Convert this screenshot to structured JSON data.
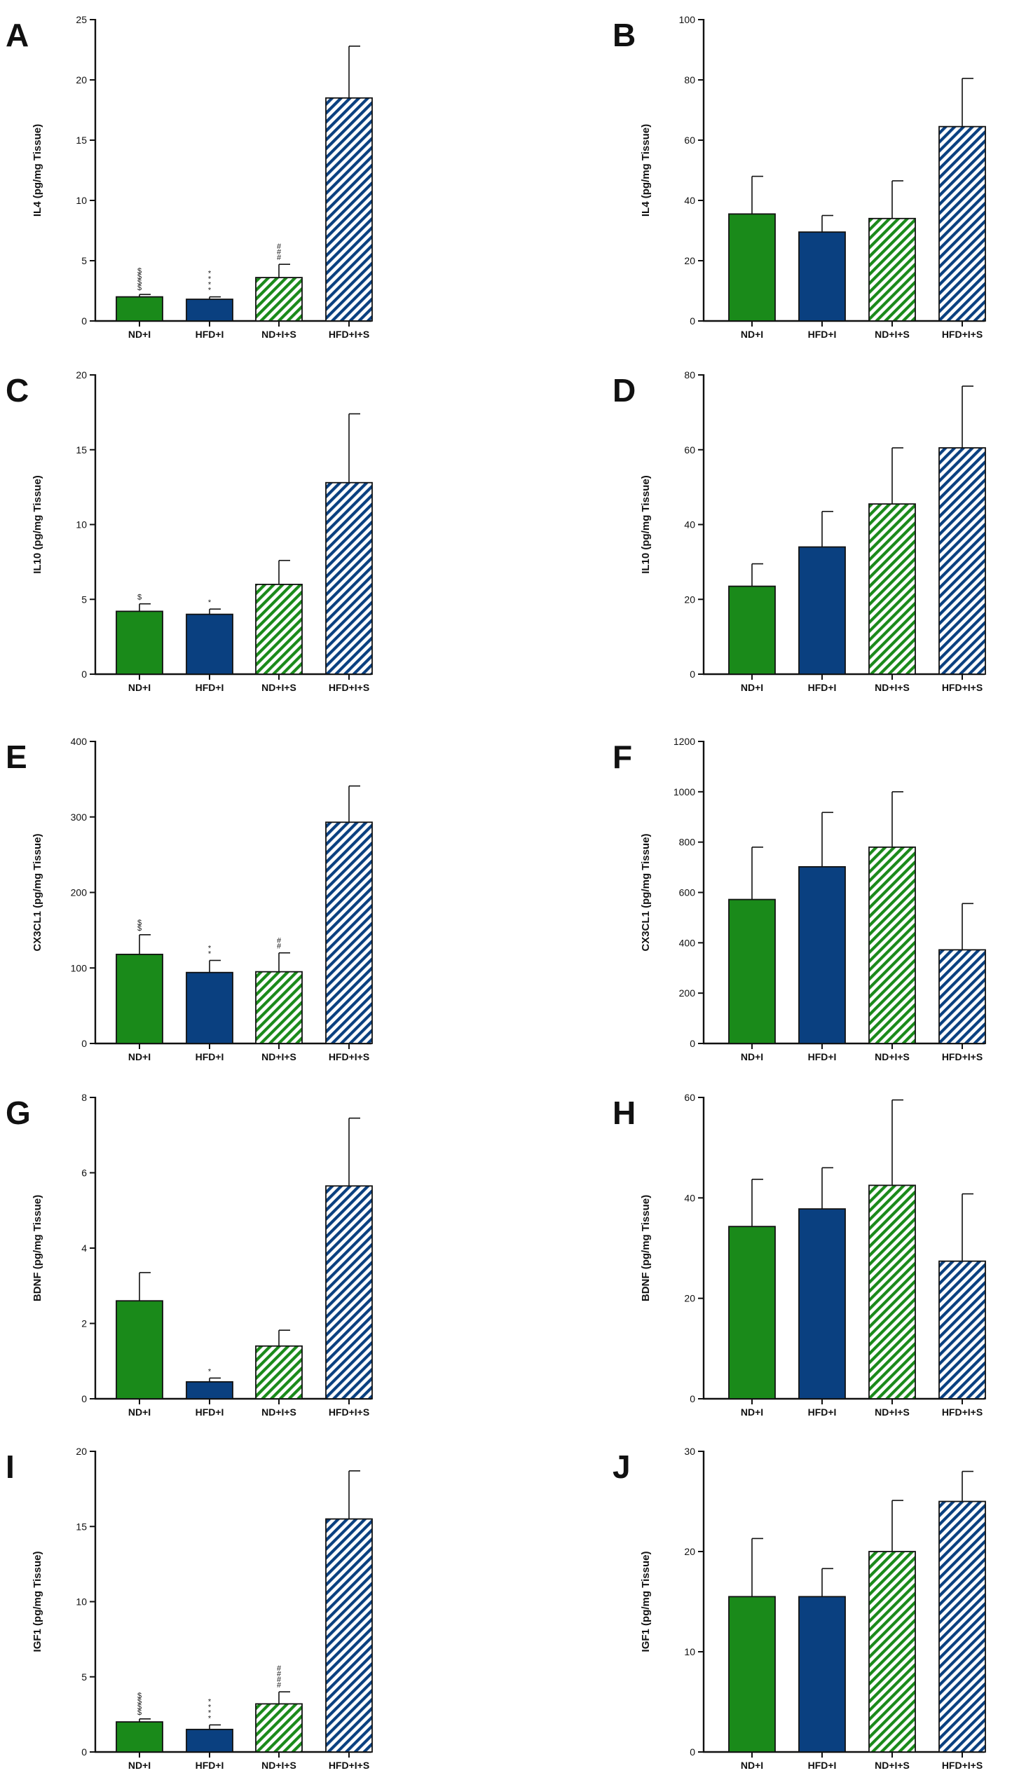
{
  "figure_title": "",
  "categories": [
    "ND+I",
    "HFD+I",
    "ND+I+S",
    "HFD+I+S"
  ],
  "colors": {
    "green": "#1a8a1a",
    "blue": "#0a4080",
    "axis": "#111111"
  },
  "chart_data": [
    {
      "panel": "A",
      "type": "bar",
      "ylabel": "IL4 (pg/mg Tissue)",
      "categories": [
        "ND+I",
        "HFD+I",
        "ND+I+S",
        "HFD+I+S"
      ],
      "values": [
        2.0,
        1.8,
        3.6,
        18.5
      ],
      "errors": [
        0.2,
        0.2,
        1.1,
        4.3
      ],
      "ylim": [
        0,
        25
      ],
      "yticks": [
        0,
        5,
        10,
        15,
        20,
        25
      ],
      "annotations": [
        "$$$$",
        "****",
        "###",
        ""
      ]
    },
    {
      "panel": "B",
      "type": "bar",
      "ylabel": "IL4 (pg/mg Tissue)",
      "categories": [
        "ND+I",
        "HFD+I",
        "ND+I+S",
        "HFD+I+S"
      ],
      "values": [
        35.5,
        29.5,
        34.0,
        64.5
      ],
      "errors": [
        12.5,
        5.5,
        12.5,
        16.0
      ],
      "ylim": [
        0,
        100
      ],
      "yticks": [
        0,
        20,
        40,
        60,
        80,
        100
      ],
      "annotations": [
        "",
        "",
        "",
        ""
      ]
    },
    {
      "panel": "C",
      "type": "bar",
      "ylabel": "IL10 (pg/mg Tissue)",
      "categories": [
        "ND+I",
        "HFD+I",
        "ND+I+S",
        "HFD+I+S"
      ],
      "values": [
        4.2,
        4.0,
        6.0,
        12.8
      ],
      "errors": [
        0.5,
        0.35,
        1.6,
        4.6
      ],
      "ylim": [
        0,
        20
      ],
      "yticks": [
        0,
        5,
        10,
        15,
        20
      ],
      "annotations": [
        "$",
        "*",
        "",
        ""
      ]
    },
    {
      "panel": "D",
      "type": "bar",
      "ylabel": "IL10 (pg/mg Tissue)",
      "categories": [
        "ND+I",
        "HFD+I",
        "ND+I+S",
        "HFD+I+S"
      ],
      "values": [
        23.5,
        34.0,
        45.5,
        60.5
      ],
      "errors": [
        6.0,
        9.5,
        15.0,
        16.5
      ],
      "ylim": [
        0,
        80
      ],
      "yticks": [
        0,
        20,
        40,
        60,
        80
      ],
      "annotations": [
        "",
        "",
        "",
        ""
      ]
    },
    {
      "panel": "E",
      "type": "bar",
      "ylabel": "CX3CL1 (pg/mg Tissue)",
      "categories": [
        "ND+I",
        "HFD+I",
        "ND+I+S",
        "HFD+I+S"
      ],
      "values": [
        118,
        94,
        95,
        293
      ],
      "errors": [
        26,
        16,
        25,
        48
      ],
      "ylim": [
        0,
        400
      ],
      "yticks": [
        0,
        100,
        200,
        300,
        400
      ],
      "annotations": [
        "$$",
        "**",
        "##",
        ""
      ]
    },
    {
      "panel": "F",
      "type": "bar",
      "ylabel": "CX3CL1 (pg/mg Tissue)",
      "categories": [
        "ND+I",
        "HFD+I",
        "ND+I+S",
        "HFD+I+S"
      ],
      "values": [
        572,
        702,
        780,
        372
      ],
      "errors": [
        208,
        216,
        220,
        184
      ],
      "ylim": [
        0,
        1200
      ],
      "yticks": [
        0,
        200,
        400,
        600,
        800,
        1000,
        1200
      ],
      "annotations": [
        "",
        "",
        "",
        ""
      ]
    },
    {
      "panel": "G",
      "type": "bar",
      "ylabel": "BDNF (pg/mg Tissue)",
      "categories": [
        "ND+I",
        "HFD+I",
        "ND+I+S",
        "HFD+I+S"
      ],
      "values": [
        2.6,
        0.45,
        1.4,
        5.65
      ],
      "errors": [
        0.75,
        0.1,
        0.42,
        1.8
      ],
      "ylim": [
        0,
        8
      ],
      "yticks": [
        0,
        2,
        4,
        6,
        8
      ],
      "annotations": [
        "",
        "*",
        "",
        ""
      ]
    },
    {
      "panel": "H",
      "type": "bar",
      "ylabel": "BDNF (pg/mg Tissue)",
      "categories": [
        "ND+I",
        "HFD+I",
        "ND+I+S",
        "HFD+I+S"
      ],
      "values": [
        34.3,
        37.8,
        42.5,
        27.4
      ],
      "errors": [
        9.4,
        8.2,
        17.0,
        13.4
      ],
      "ylim": [
        0,
        60
      ],
      "yticks": [
        0,
        20,
        40,
        60
      ],
      "annotations": [
        "",
        "",
        "",
        ""
      ]
    },
    {
      "panel": "I",
      "type": "bar",
      "ylabel": "IGF1 (pg/mg Tissue)",
      "categories": [
        "ND+I",
        "HFD+I",
        "ND+I+S",
        "HFD+I+S"
      ],
      "values": [
        2.0,
        1.5,
        3.2,
        15.5
      ],
      "errors": [
        0.2,
        0.3,
        0.8,
        3.2
      ],
      "ylim": [
        0,
        20
      ],
      "yticks": [
        0,
        5,
        10,
        15,
        20
      ],
      "annotations": [
        "$$$$",
        "****",
        "####",
        ""
      ]
    },
    {
      "panel": "J",
      "type": "bar",
      "ylabel": "IGF1 (pg/mg Tissue)",
      "categories": [
        "ND+I",
        "HFD+I",
        "ND+I+S",
        "HFD+I+S"
      ],
      "values": [
        15.5,
        15.5,
        20.0,
        25.0
      ],
      "errors": [
        5.8,
        2.8,
        5.1,
        3.0
      ],
      "ylim": [
        0,
        30
      ],
      "yticks": [
        0,
        10,
        20,
        30
      ],
      "annotations": [
        "",
        "",
        "",
        ""
      ]
    }
  ]
}
